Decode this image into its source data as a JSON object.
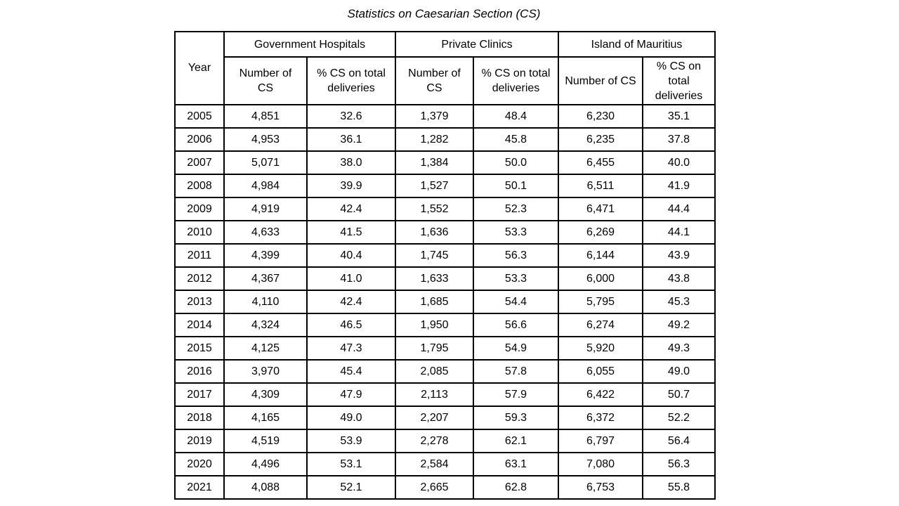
{
  "title": "Statistics on Caesarian Section (CS)",
  "table": {
    "year_header": "Year",
    "groups": [
      "Government Hospitals",
      "Private Clinics",
      "Island of Mauritius"
    ],
    "subheaders": [
      "Number of CS",
      "% CS on total deliveries",
      "Number of CS",
      "% CS on total deliveries",
      "Number of CS",
      "% CS on total deliveries"
    ],
    "rows": [
      [
        "2005",
        "4,851",
        "32.6",
        "1,379",
        "48.4",
        "6,230",
        "35.1"
      ],
      [
        "2006",
        "4,953",
        "36.1",
        "1,282",
        "45.8",
        "6,235",
        "37.8"
      ],
      [
        "2007",
        "5,071",
        "38.0",
        "1,384",
        "50.0",
        "6,455",
        "40.0"
      ],
      [
        "2008",
        "4,984",
        "39.9",
        "1,527",
        "50.1",
        "6,511",
        "41.9"
      ],
      [
        "2009",
        "4,919",
        "42.4",
        "1,552",
        "52.3",
        "6,471",
        "44.4"
      ],
      [
        "2010",
        "4,633",
        "41.5",
        "1,636",
        "53.3",
        "6,269",
        "44.1"
      ],
      [
        "2011",
        "4,399",
        "40.4",
        "1,745",
        "56.3",
        "6,144",
        "43.9"
      ],
      [
        "2012",
        "4,367",
        "41.0",
        "1,633",
        "53.3",
        "6,000",
        "43.8"
      ],
      [
        "2013",
        "4,110",
        "42.4",
        "1,685",
        "54.4",
        "5,795",
        "45.3"
      ],
      [
        "2014",
        "4,324",
        "46.5",
        "1,950",
        "56.6",
        "6,274",
        "49.2"
      ],
      [
        "2015",
        "4,125",
        "47.3",
        "1,795",
        "54.9",
        "5,920",
        "49.3"
      ],
      [
        "2016",
        "3,970",
        "45.4",
        "2,085",
        "57.8",
        "6,055",
        "49.0"
      ],
      [
        "2017",
        "4,309",
        "47.9",
        "2,113",
        "57.9",
        "6,422",
        "50.7"
      ],
      [
        "2018",
        "4,165",
        "49.0",
        "2,207",
        "59.3",
        "6,372",
        "52.2"
      ],
      [
        "2019",
        "4,519",
        "53.9",
        "2,278",
        "62.1",
        "6,797",
        "56.4"
      ],
      [
        "2020",
        "4,496",
        "53.1",
        "2,584",
        "63.1",
        "7,080",
        "56.3"
      ],
      [
        "2021",
        "4,088",
        "52.1",
        "2,665",
        "62.8",
        "6,753",
        "55.8"
      ]
    ]
  }
}
